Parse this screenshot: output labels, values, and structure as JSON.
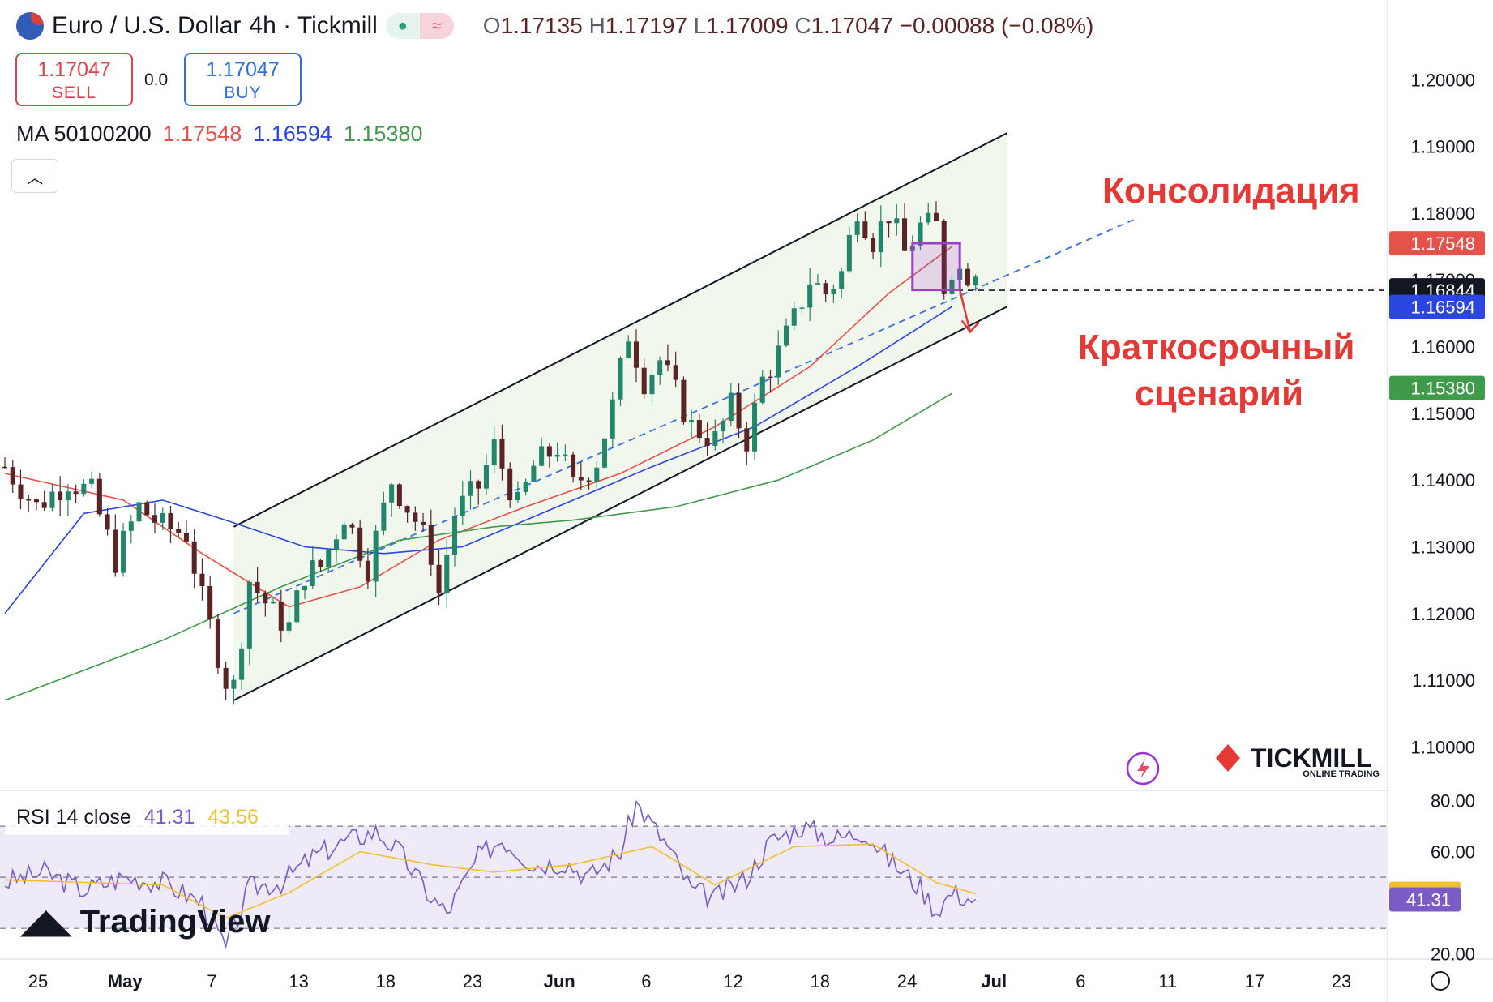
{
  "header": {
    "symbol": "Euro / U.S. Dollar",
    "interval_broker": "4h · Tickmill",
    "ohlc": {
      "o_label": "O",
      "o": "1.17135",
      "h_label": "H",
      "h": "1.17197",
      "l_label": "L",
      "l": "1.17009",
      "c_label": "C",
      "c": "1.17047",
      "change": "−0.00088 (−0.08%)"
    },
    "pill_left_icon": "dot-icon",
    "pill_right_icon": "wave-icon"
  },
  "trade": {
    "sell_price": "1.17047",
    "sell_label": "SELL",
    "spread": "0.0",
    "buy_price": "1.17047",
    "buy_label": "BUY"
  },
  "ma_legend": {
    "label": "MA 50100200",
    "v50": "1.17548",
    "v100": "1.16594",
    "v200": "1.15380"
  },
  "rsi_legend": {
    "label": "RSI 14 close",
    "rsi": "41.31",
    "ma": "43.56"
  },
  "colors": {
    "up": "#22866a",
    "down": "#5b2424",
    "ma50": "#e5524a",
    "ma100": "#2b45e0",
    "ma200": "#3f9a4a",
    "rsi": "#7b5cc6",
    "rsi_ma": "#f0c02e",
    "annotation": "#e53935",
    "channel_fill": "#eef6ea",
    "consolidation_box": "#9c3fc8"
  },
  "annotations": {
    "consolidation": "Консолидация",
    "scenario_line1": "Краткосрочный",
    "scenario_line2": "сценарий"
  },
  "branding": {
    "tradingview": "TradingView",
    "tickmill": "TICKMILL",
    "tickmill_sub": "ONLINE TRADING"
  },
  "chart_data": [
    {
      "type": "candlestick",
      "title": "Euro / U.S. Dollar · 4h · Tickmill",
      "x_tick_labels": [
        "25",
        "May",
        "7",
        "13",
        "18",
        "23",
        "Jun",
        "6",
        "12",
        "18",
        "24",
        "Jul",
        "6",
        "11",
        "17",
        "23"
      ],
      "y_ticks": [
        "1.20000",
        "1.19000",
        "1.18000",
        "1.17000",
        "1.16000",
        "1.15000",
        "1.14000",
        "1.13000",
        "1.12000",
        "1.11000",
        "1.10000"
      ],
      "ylim": [
        1.0935,
        1.2055
      ],
      "last_close": 1.17047,
      "price_labels": [
        {
          "value": "1.17548",
          "series": "MA 50",
          "color": "#e5524a"
        },
        {
          "value": "1.16844",
          "series": "Horizontal level",
          "color": "#131722"
        },
        {
          "value": "1.16594",
          "series": "MA 100",
          "color": "#2b45e0"
        },
        {
          "value": "1.15380",
          "series": "MA 200",
          "color": "#3f9a4a"
        }
      ],
      "horizontal_level": 1.16844,
      "price_path_points": [
        {
          "x": 0,
          "y": 1.142
        },
        {
          "x": 4,
          "y": 1.136
        },
        {
          "x": 8,
          "y": 1.14
        },
        {
          "x": 11,
          "y": 1.138
        },
        {
          "x": 14,
          "y": 1.128
        },
        {
          "x": 17,
          "y": 1.136
        },
        {
          "x": 20,
          "y": 1.133
        },
        {
          "x": 23,
          "y": 1.132
        },
        {
          "x": 25,
          "y": 1.122
        },
        {
          "x": 28,
          "y": 1.11
        },
        {
          "x": 29,
          "y": 1.109
        },
        {
          "x": 31,
          "y": 1.125
        },
        {
          "x": 34,
          "y": 1.12
        },
        {
          "x": 36,
          "y": 1.118
        },
        {
          "x": 38,
          "y": 1.126
        },
        {
          "x": 40,
          "y": 1.127
        },
        {
          "x": 43,
          "y": 1.135
        },
        {
          "x": 46,
          "y": 1.127
        },
        {
          "x": 49,
          "y": 1.14
        },
        {
          "x": 52,
          "y": 1.134
        },
        {
          "x": 54,
          "y": 1.129
        },
        {
          "x": 55,
          "y": 1.123
        },
        {
          "x": 57,
          "y": 1.135
        },
        {
          "x": 60,
          "y": 1.139
        },
        {
          "x": 62,
          "y": 1.145
        },
        {
          "x": 65,
          "y": 1.136
        },
        {
          "x": 67,
          "y": 1.142
        },
        {
          "x": 70,
          "y": 1.145
        },
        {
          "x": 72,
          "y": 1.139
        },
        {
          "x": 75,
          "y": 1.143
        },
        {
          "x": 77,
          "y": 1.151
        },
        {
          "x": 79,
          "y": 1.162
        },
        {
          "x": 81,
          "y": 1.155
        },
        {
          "x": 83,
          "y": 1.158
        },
        {
          "x": 85,
          "y": 1.153
        },
        {
          "x": 87,
          "y": 1.148
        },
        {
          "x": 90,
          "y": 1.146
        },
        {
          "x": 92,
          "y": 1.151
        },
        {
          "x": 94,
          "y": 1.146
        },
        {
          "x": 96,
          "y": 1.155
        },
        {
          "x": 98,
          "y": 1.159
        },
        {
          "x": 100,
          "y": 1.164
        },
        {
          "x": 102,
          "y": 1.17
        },
        {
          "x": 104,
          "y": 1.168
        },
        {
          "x": 106,
          "y": 1.171
        },
        {
          "x": 108,
          "y": 1.181
        },
        {
          "x": 110,
          "y": 1.176
        },
        {
          "x": 112,
          "y": 1.18
        },
        {
          "x": 114,
          "y": 1.174
        },
        {
          "x": 116,
          "y": 1.178
        },
        {
          "x": 118,
          "y": 1.178
        },
        {
          "x": 119,
          "y": 1.169
        },
        {
          "x": 120,
          "y": 1.172
        },
        {
          "x": 122,
          "y": 1.171
        },
        {
          "x": 123,
          "y": 1.17
        }
      ],
      "series": [
        {
          "name": "MA 50",
          "color": "#e5524a",
          "last": 1.17548,
          "points": [
            {
              "x": 0,
              "y": 1.141
            },
            {
              "x": 15,
              "y": 1.137
            },
            {
              "x": 25,
              "y": 1.129
            },
            {
              "x": 36,
              "y": 1.121
            },
            {
              "x": 45,
              "y": 1.124
            },
            {
              "x": 55,
              "y": 1.131
            },
            {
              "x": 66,
              "y": 1.136
            },
            {
              "x": 78,
              "y": 1.141
            },
            {
              "x": 90,
              "y": 1.148
            },
            {
              "x": 102,
              "y": 1.157
            },
            {
              "x": 112,
              "y": 1.168
            },
            {
              "x": 120,
              "y": 1.175
            }
          ]
        },
        {
          "name": "MA 100",
          "color": "#2b45e0",
          "last": 1.16594,
          "points": [
            {
              "x": 0,
              "y": 1.12
            },
            {
              "x": 10,
              "y": 1.135
            },
            {
              "x": 20,
              "y": 1.137
            },
            {
              "x": 28,
              "y": 1.134
            },
            {
              "x": 38,
              "y": 1.13
            },
            {
              "x": 48,
              "y": 1.129
            },
            {
              "x": 58,
              "y": 1.13
            },
            {
              "x": 70,
              "y": 1.136
            },
            {
              "x": 82,
              "y": 1.142
            },
            {
              "x": 95,
              "y": 1.148
            },
            {
              "x": 108,
              "y": 1.157
            },
            {
              "x": 120,
              "y": 1.166
            }
          ]
        },
        {
          "name": "MA 200",
          "color": "#3f9a4a",
          "last": 1.1538,
          "points": [
            {
              "x": 0,
              "y": 1.107
            },
            {
              "x": 20,
              "y": 1.116
            },
            {
              "x": 35,
              "y": 1.124
            },
            {
              "x": 50,
              "y": 1.131
            },
            {
              "x": 62,
              "y": 1.133
            },
            {
              "x": 72,
              "y": 1.134
            },
            {
              "x": 85,
              "y": 1.136
            },
            {
              "x": 98,
              "y": 1.14
            },
            {
              "x": 110,
              "y": 1.146
            },
            {
              "x": 120,
              "y": 1.153
            }
          ]
        }
      ],
      "channel": {
        "upper": [
          {
            "x": 29,
            "y": 1.133
          },
          {
            "x": 127,
            "y": 1.192
          }
        ],
        "lower": [
          {
            "x": 29,
            "y": 1.107
          },
          {
            "x": 127,
            "y": 1.166
          }
        ]
      },
      "consolidation_box": {
        "x": [
          115,
          121
        ],
        "y": [
          1.1685,
          1.1755
        ]
      }
    },
    {
      "type": "line",
      "title": "RSI 14 close",
      "y_ticks": [
        "80.00",
        "60.00",
        "20.00"
      ],
      "ylim": [
        18,
        84
      ],
      "band": [
        30,
        70
      ],
      "price_labels": [
        {
          "value": "43.56",
          "series": "RSI MA",
          "color": "#f0c02e"
        },
        {
          "value": "41.31",
          "series": "RSI",
          "color": "#7b5cc6"
        }
      ],
      "series": [
        {
          "name": "RSI",
          "color": "#7b5cc6",
          "last": 41.31,
          "points": [
            {
              "x": 0,
              "y": 48
            },
            {
              "x": 5,
              "y": 52
            },
            {
              "x": 10,
              "y": 45
            },
            {
              "x": 15,
              "y": 50
            },
            {
              "x": 20,
              "y": 48
            },
            {
              "x": 25,
              "y": 40
            },
            {
              "x": 28,
              "y": 22
            },
            {
              "x": 31,
              "y": 46
            },
            {
              "x": 35,
              "y": 48
            },
            {
              "x": 39,
              "y": 58
            },
            {
              "x": 43,
              "y": 64
            },
            {
              "x": 47,
              "y": 68
            },
            {
              "x": 50,
              "y": 60
            },
            {
              "x": 54,
              "y": 42
            },
            {
              "x": 56,
              "y": 36
            },
            {
              "x": 60,
              "y": 58
            },
            {
              "x": 63,
              "y": 65
            },
            {
              "x": 67,
              "y": 55
            },
            {
              "x": 71,
              "y": 56
            },
            {
              "x": 74,
              "y": 50
            },
            {
              "x": 78,
              "y": 60
            },
            {
              "x": 80,
              "y": 79
            },
            {
              "x": 84,
              "y": 62
            },
            {
              "x": 87,
              "y": 45
            },
            {
              "x": 90,
              "y": 42
            },
            {
              "x": 94,
              "y": 50
            },
            {
              "x": 97,
              "y": 64
            },
            {
              "x": 101,
              "y": 70
            },
            {
              "x": 105,
              "y": 65
            },
            {
              "x": 109,
              "y": 68
            },
            {
              "x": 112,
              "y": 57
            },
            {
              "x": 116,
              "y": 46
            },
            {
              "x": 118,
              "y": 37
            },
            {
              "x": 120,
              "y": 44
            },
            {
              "x": 123,
              "y": 41
            }
          ]
        },
        {
          "name": "RSI MA",
          "color": "#f0c02e",
          "last": 43.56,
          "points": [
            {
              "x": 0,
              "y": 49
            },
            {
              "x": 10,
              "y": 48
            },
            {
              "x": 20,
              "y": 47
            },
            {
              "x": 28,
              "y": 34
            },
            {
              "x": 36,
              "y": 44
            },
            {
              "x": 45,
              "y": 60
            },
            {
              "x": 54,
              "y": 55
            },
            {
              "x": 62,
              "y": 52
            },
            {
              "x": 72,
              "y": 55
            },
            {
              "x": 82,
              "y": 62
            },
            {
              "x": 90,
              "y": 47
            },
            {
              "x": 100,
              "y": 62
            },
            {
              "x": 110,
              "y": 63
            },
            {
              "x": 118,
              "y": 48
            },
            {
              "x": 123,
              "y": 43.6
            }
          ]
        }
      ]
    }
  ]
}
